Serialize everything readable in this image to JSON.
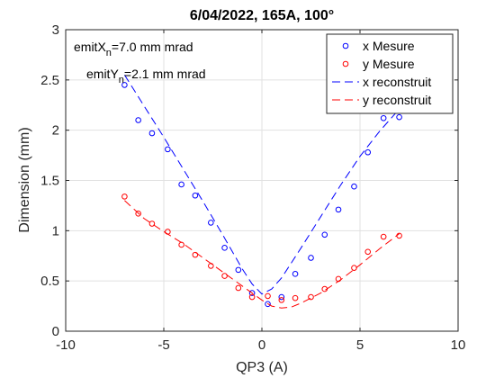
{
  "chart_data": {
    "type": "scatter",
    "title": "6/04/2022, 165A, 100°",
    "xlabel": "QP3 (A)",
    "ylabel": "Dimension (mm)",
    "xlim": [
      -10,
      10
    ],
    "ylim": [
      0,
      3
    ],
    "xticks": [
      -10,
      -5,
      0,
      5,
      10
    ],
    "yticks": [
      0,
      0.5,
      1,
      1.5,
      2,
      2.5,
      3
    ],
    "grid": true,
    "legend_position": "top-right",
    "annotations": [
      {
        "main": "emitX",
        "sub": "n",
        "rest": "=7.0 mm mrad"
      },
      {
        "main": "emitY",
        "sub": "n",
        "rest": "=2.1 mm mrad"
      }
    ],
    "series": [
      {
        "name": "x Mesure",
        "style": "markers",
        "color": "#0000ff",
        "x": [
          -7.0,
          -6.3,
          -5.6,
          -4.8,
          -4.1,
          -3.4,
          -2.6,
          -1.9,
          -1.2,
          -0.5,
          0.3,
          1.0,
          1.7,
          2.5,
          3.2,
          3.9,
          4.7,
          5.4,
          6.2,
          7.0
        ],
        "y": [
          2.45,
          2.1,
          1.97,
          1.81,
          1.46,
          1.35,
          1.08,
          0.83,
          0.61,
          0.38,
          0.27,
          0.34,
          0.57,
          0.73,
          0.96,
          1.21,
          1.44,
          1.78,
          2.12,
          2.13
        ]
      },
      {
        "name": "y Mesure",
        "style": "markers",
        "color": "#ff0000",
        "x": [
          -7.0,
          -6.3,
          -5.6,
          -4.8,
          -4.1,
          -3.4,
          -2.6,
          -1.9,
          -1.2,
          -0.5,
          0.3,
          1.0,
          1.7,
          2.5,
          3.2,
          3.9,
          4.7,
          5.4,
          6.2,
          7.0
        ],
        "y": [
          1.34,
          1.17,
          1.07,
          0.99,
          0.86,
          0.76,
          0.65,
          0.55,
          0.43,
          0.34,
          0.35,
          0.31,
          0.33,
          0.34,
          0.42,
          0.52,
          0.63,
          0.79,
          0.94,
          0.95
        ]
      },
      {
        "name": "x reconstruit",
        "style": "dashed-line",
        "color": "#0000ff",
        "x": [
          -7.0,
          -6.0,
          -5.0,
          -4.0,
          -3.0,
          -2.0,
          -1.0,
          -0.5,
          0.0,
          0.5,
          1.0,
          1.5,
          2.0,
          3.0,
          4.0,
          5.0,
          6.0,
          7.0
        ],
        "y": [
          2.55,
          2.24,
          1.93,
          1.61,
          1.29,
          0.96,
          0.62,
          0.47,
          0.37,
          0.42,
          0.53,
          0.68,
          0.83,
          1.14,
          1.45,
          1.74,
          1.99,
          2.21
        ]
      },
      {
        "name": "y reconstruit",
        "style": "dashed-line",
        "color": "#ff0000",
        "x": [
          -7.0,
          -6.0,
          -5.0,
          -4.0,
          -3.0,
          -2.0,
          -1.0,
          0.0,
          0.5,
          1.0,
          1.5,
          2.0,
          3.0,
          4.0,
          5.0,
          6.0,
          7.0
        ],
        "y": [
          1.3,
          1.12,
          0.99,
          0.87,
          0.73,
          0.59,
          0.45,
          0.31,
          0.25,
          0.23,
          0.24,
          0.28,
          0.38,
          0.51,
          0.66,
          0.82,
          0.97
        ]
      }
    ]
  }
}
